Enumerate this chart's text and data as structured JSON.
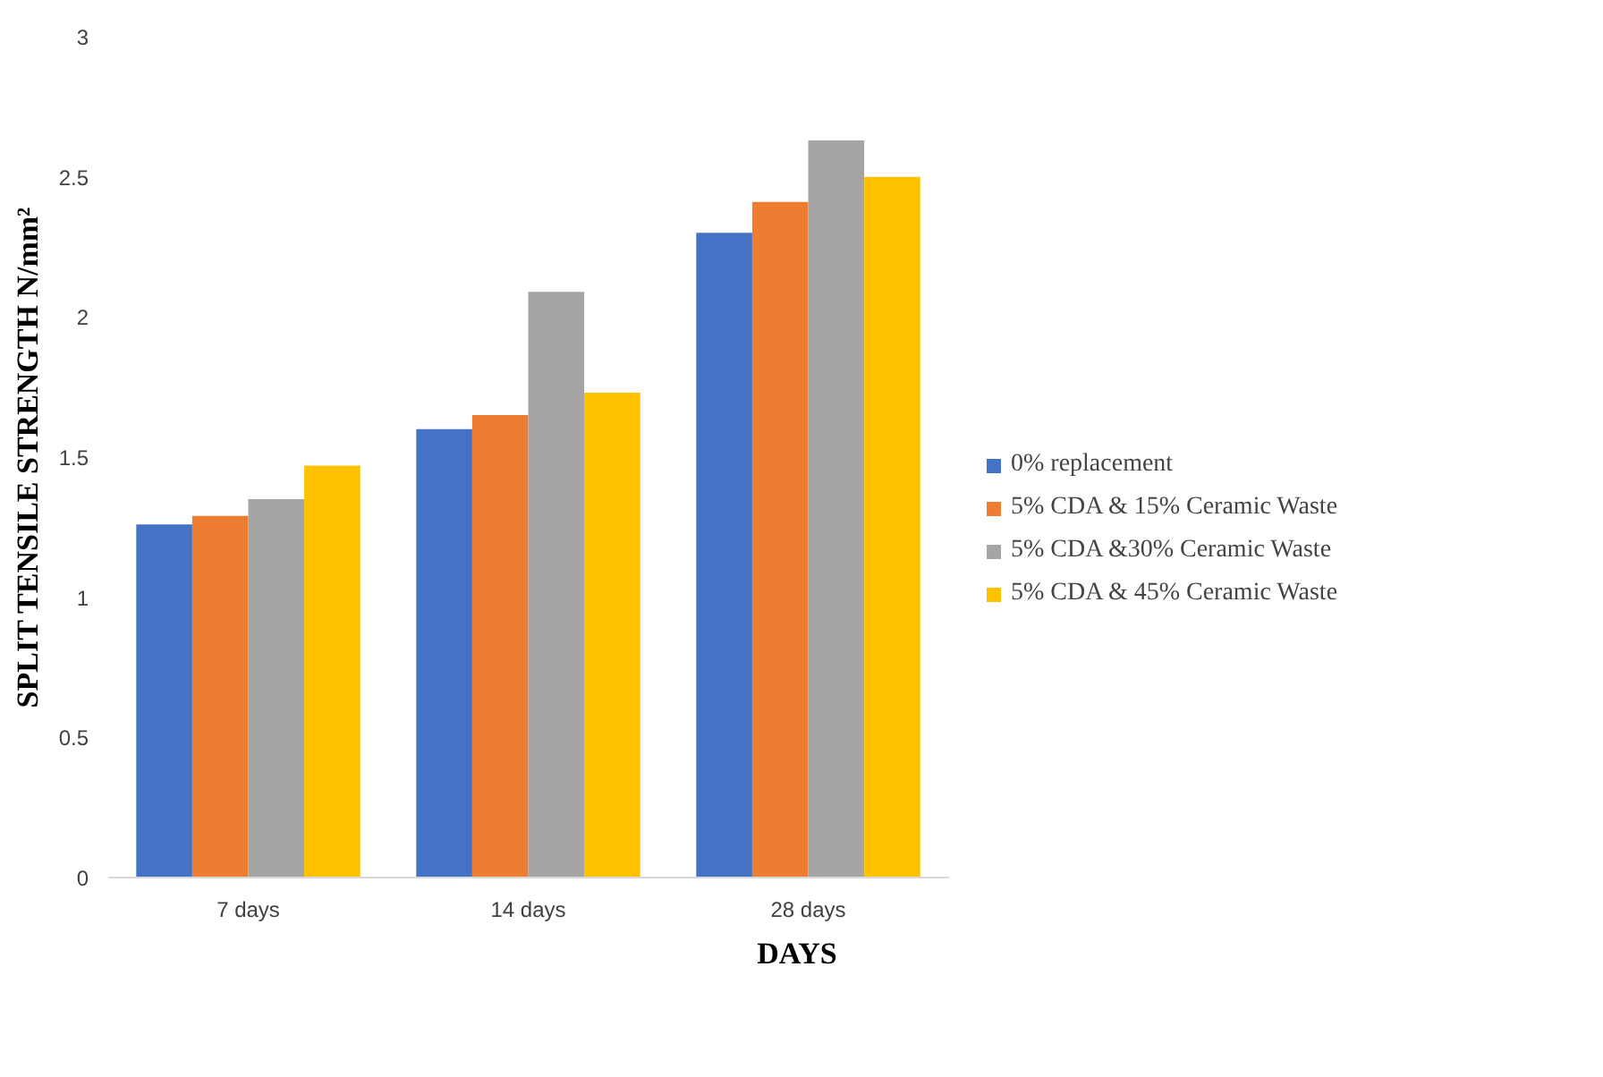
{
  "chart_data": {
    "type": "bar",
    "xlabel": "DAYS",
    "ylabel": "SPLIT TENSILE STRENGTH N/mm²",
    "categories": [
      "7 days",
      "14 days",
      "28 days"
    ],
    "series": [
      {
        "name": "0% replacement",
        "color": "#4472c4",
        "values": [
          1.26,
          1.6,
          2.3
        ]
      },
      {
        "name": "5% CDA & 15% Ceramic Waste",
        "color": "#ed7d31",
        "values": [
          1.29,
          1.65,
          2.41
        ]
      },
      {
        "name": "5% CDA &30% Ceramic Waste",
        "color": "#a5a5a5",
        "values": [
          1.35,
          2.09,
          2.63
        ]
      },
      {
        "name": "5% CDA & 45% Ceramic Waste",
        "color": "#ffc000",
        "values": [
          1.47,
          1.73,
          2.5
        ]
      }
    ],
    "ylim": [
      0,
      3
    ],
    "yticks": [
      0,
      0.5,
      1,
      1.5,
      2,
      2.5,
      3
    ],
    "grid": false,
    "legend": "right"
  }
}
